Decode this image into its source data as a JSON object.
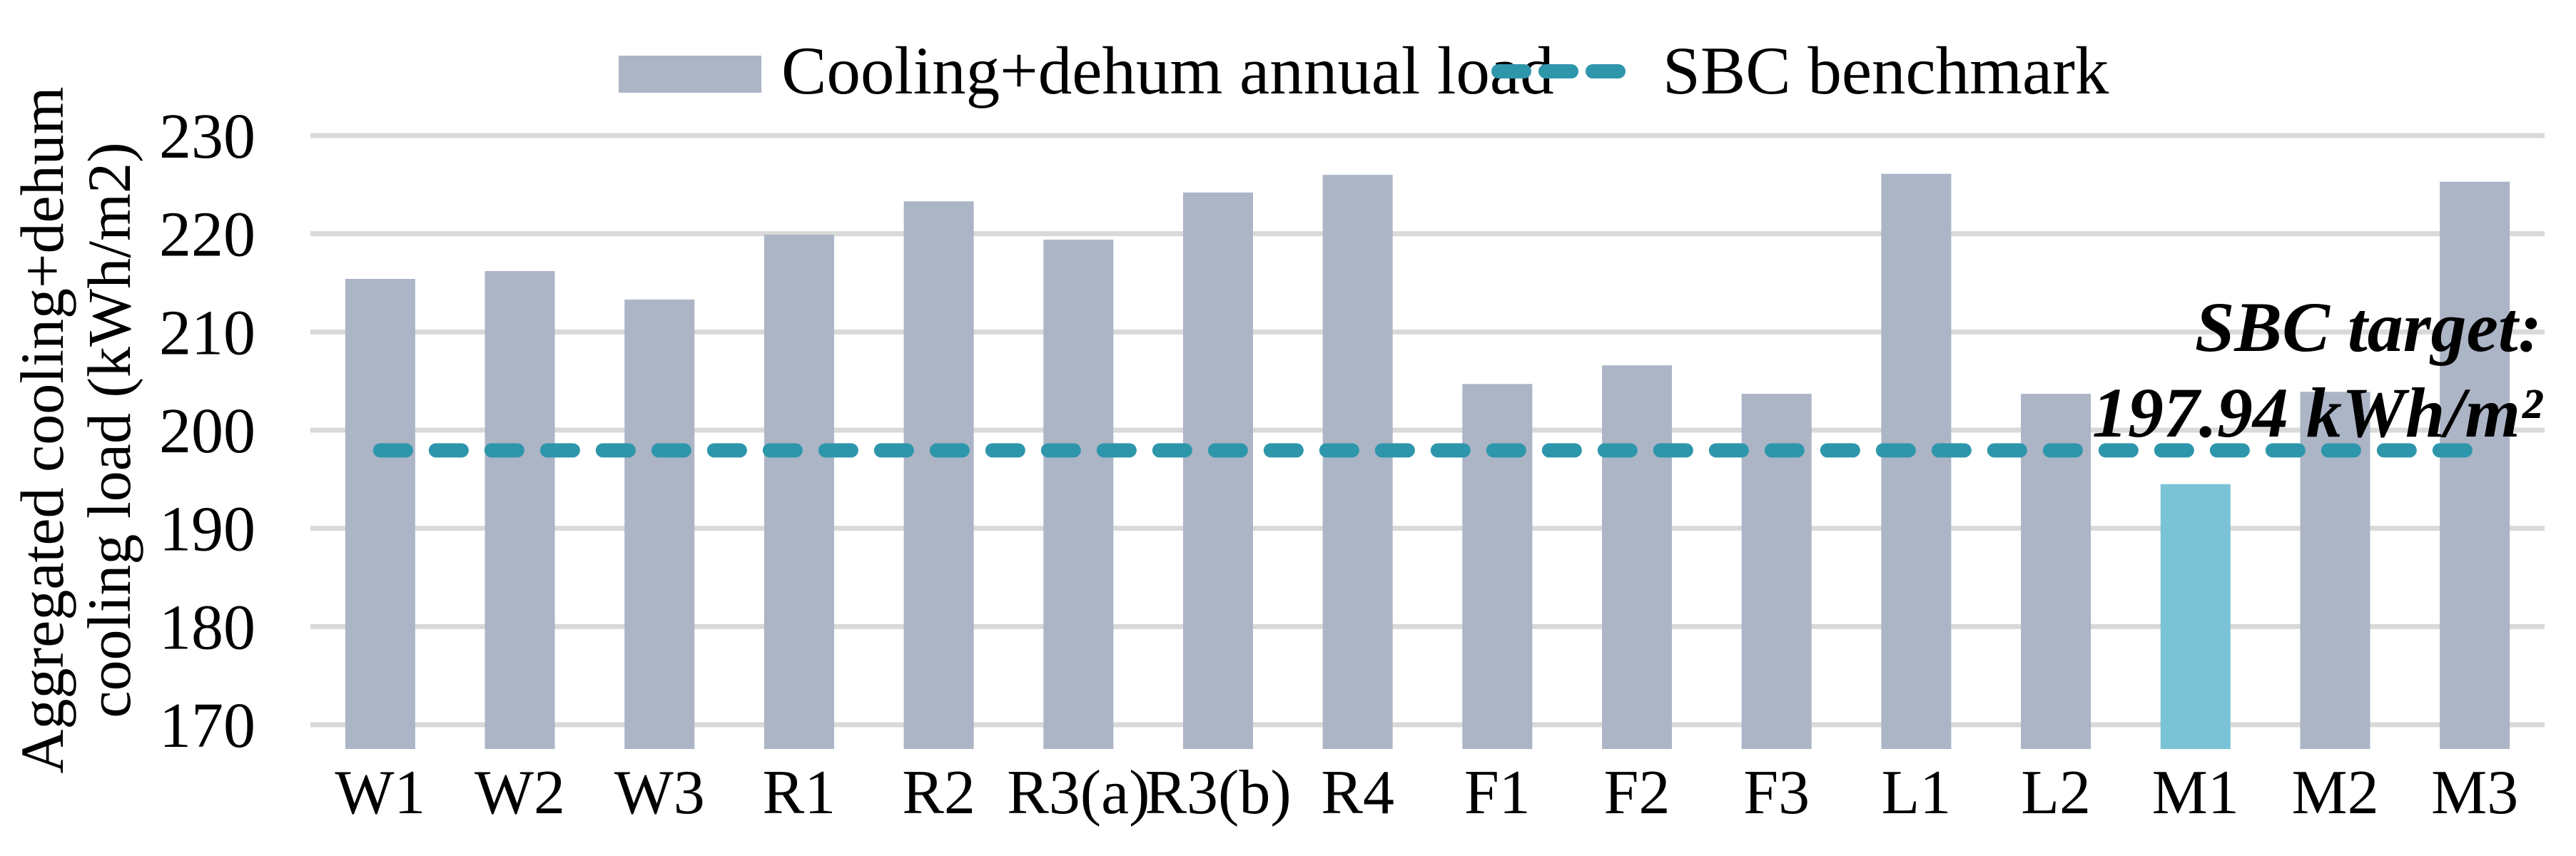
{
  "figure": {
    "background": "#FFFFFF"
  },
  "legend": {
    "series_label": "Cooling+dehum annual load",
    "benchmark_label": "SBC benchmark"
  },
  "annotation": {
    "line1": "SBC target:",
    "line2": "197.94 kWh/m²"
  },
  "y_axis": {
    "title_line1": "Aggregated cooling+dehum",
    "title_line2": "cooling load (kWh/m2)"
  },
  "chart_data": {
    "type": "bar",
    "title": "",
    "categories": [
      "W1",
      "W2",
      "W3",
      "R1",
      "R2",
      "R3(a)",
      "R3(b)",
      "R4",
      "F1",
      "F2",
      "F3",
      "L1",
      "L2",
      "M1",
      "M2",
      "M3"
    ],
    "values": [
      215.4,
      216.2,
      213.3,
      219.9,
      223.3,
      219.4,
      224.2,
      226.0,
      204.7,
      206.6,
      203.7,
      226.1,
      203.7,
      194.5,
      203.9,
      225.3
    ],
    "highlighted_category": "M1",
    "benchmark": {
      "label": "SBC benchmark",
      "value": 197.94
    },
    "series_name": "Cooling+dehum annual load",
    "xlabel": "",
    "ylabel": "Aggregated cooling+dehum cooling load (kWh/m2)",
    "ylim": [
      170,
      230
    ],
    "ytick_step": 10,
    "yticks": [
      170,
      180,
      190,
      200,
      210,
      220,
      230
    ],
    "grid": true,
    "legend_position": "top-center",
    "colors": {
      "bar": "#ABB5C6",
      "highlight": "#7AC3D6",
      "benchmark": "#2E96AB",
      "gridline": "#D9D9D9",
      "text": "#000000"
    }
  }
}
